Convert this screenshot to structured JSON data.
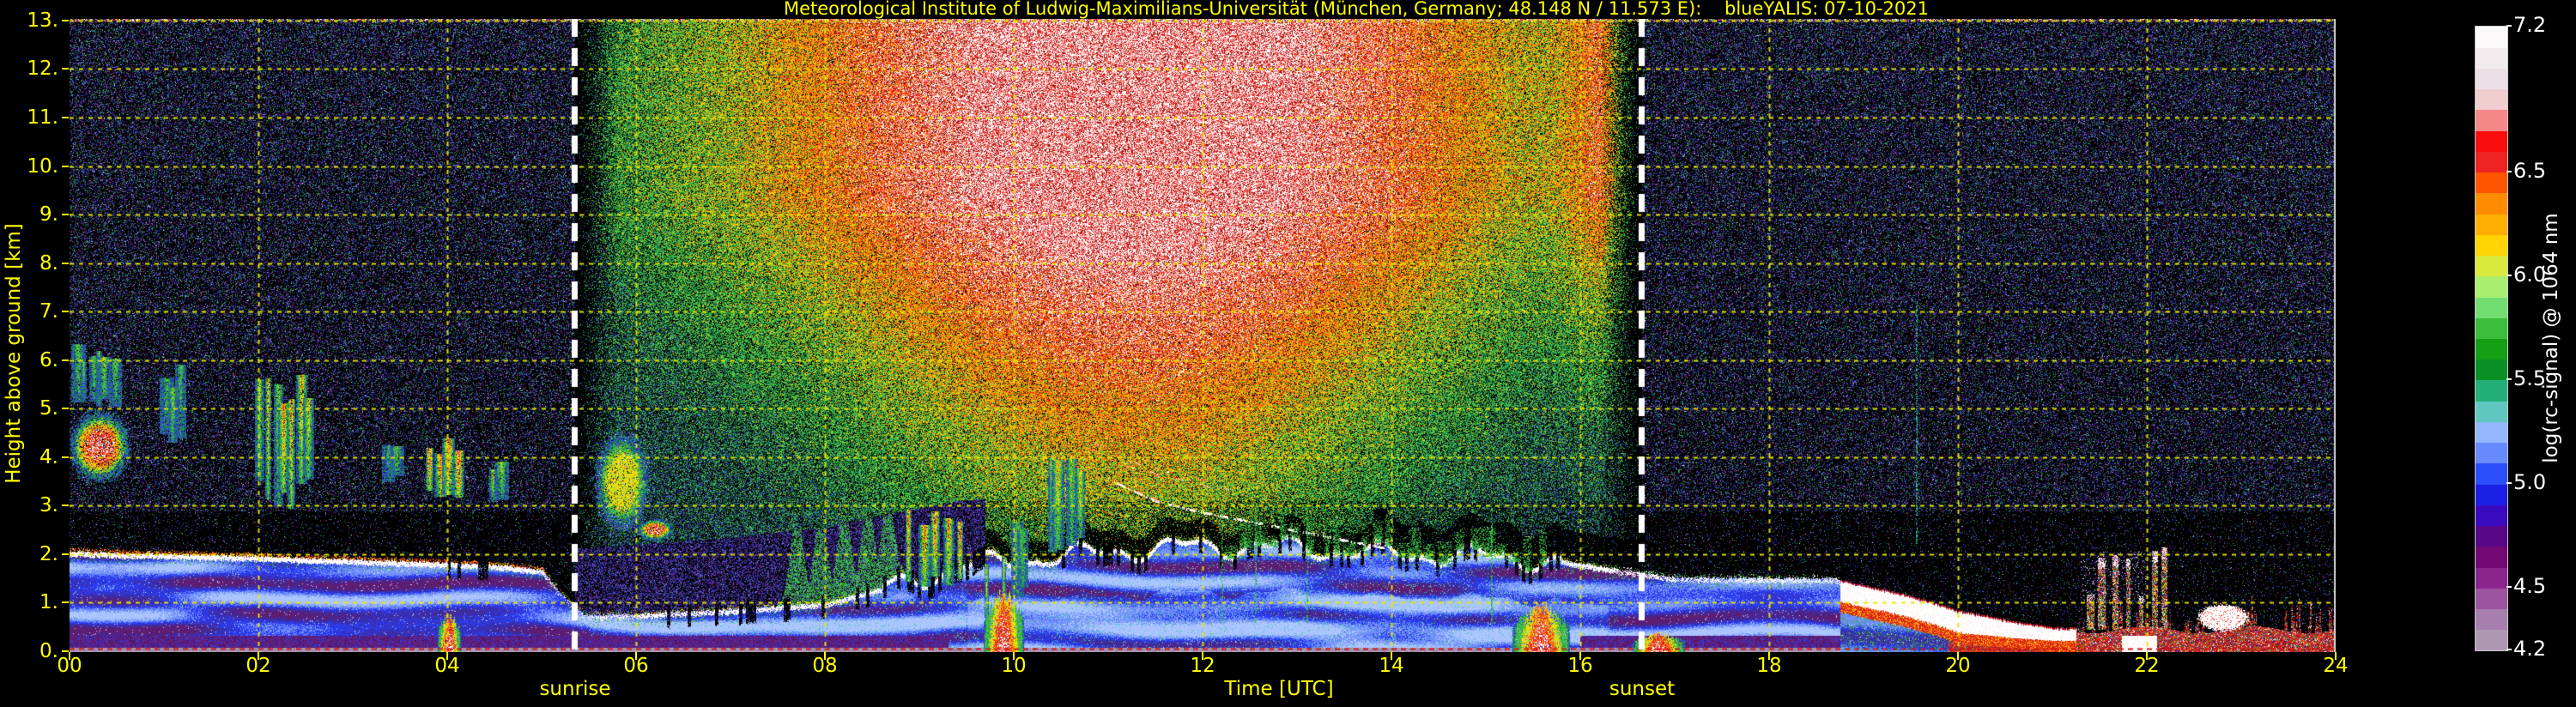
{
  "chart_data": {
    "type": "heatmap",
    "title": "Meteorological Institute of Ludwig-Maximilians-Universität (München, Germany; 48.148 N / 11.573 E):    blueYALIS: 07-10-2021",
    "xlabel": "Time [UTC]",
    "ylabel": "Height above ground [km]",
    "x_range_hours": [
      0,
      24
    ],
    "y_range_km": [
      0,
      13.05
    ],
    "x_ticks": [
      "00",
      "02",
      "04",
      "06",
      "08",
      "10",
      "12",
      "14",
      "16",
      "18",
      "20",
      "22",
      "24"
    ],
    "y_ticks": [
      "0.",
      "1.",
      "2.",
      "3.",
      "4.",
      "5.",
      "6.",
      "7.",
      "8.",
      "9.",
      "10.",
      "11.",
      "12.",
      "13."
    ],
    "grid": {
      "color": "#e8e800",
      "x_step_hours": 2,
      "y_step_km": 1,
      "style": "dashed"
    },
    "sun": {
      "sunrise_label": "sunrise",
      "sunrise_hour": 5.35,
      "sunset_label": "sunset",
      "sunset_hour": 16.65,
      "line_color": "#ffffff",
      "line_style": "dashed"
    },
    "colorbar": {
      "label": "log(rc-signal) @ 1064 nm",
      "range": [
        4.2,
        7.2
      ],
      "ticks": [
        "7.2",
        "6.5",
        "6.0",
        "5.5",
        "5.0",
        "4.5",
        "4.2"
      ],
      "segments": 30,
      "stops": [
        [
          4.2,
          "#b2a4b6"
        ],
        [
          4.35,
          "#a77fae"
        ],
        [
          4.5,
          "#963f9b"
        ],
        [
          4.6,
          "#7e0b80"
        ],
        [
          4.7,
          "#650567"
        ],
        [
          4.8,
          "#4a08a8"
        ],
        [
          4.9,
          "#2b0bd4"
        ],
        [
          5.0,
          "#0a30f2"
        ],
        [
          5.1,
          "#4a6bff"
        ],
        [
          5.2,
          "#86a8ff"
        ],
        [
          5.3,
          "#9fc3f8"
        ],
        [
          5.38,
          "#38c99c"
        ],
        [
          5.5,
          "#159a5e"
        ],
        [
          5.58,
          "#048a04"
        ],
        [
          5.7,
          "#1fae1f"
        ],
        [
          5.8,
          "#55cc55"
        ],
        [
          5.9,
          "#90f090"
        ],
        [
          6.0,
          "#c2ee4e"
        ],
        [
          6.08,
          "#e6e832"
        ],
        [
          6.15,
          "#ffd400"
        ],
        [
          6.25,
          "#ffae00"
        ],
        [
          6.35,
          "#ff8c00"
        ],
        [
          6.45,
          "#ff5400"
        ],
        [
          6.55,
          "#ee2222"
        ],
        [
          6.65,
          "#fc0d0d"
        ],
        [
          6.8,
          "#f2c6c6"
        ],
        [
          6.95,
          "#ebdfe5"
        ],
        [
          7.2,
          "#ffffff"
        ]
      ]
    },
    "boundary_layer_top_km": [
      [
        0,
        2.05
      ],
      [
        1,
        2.0
      ],
      [
        2,
        1.95
      ],
      [
        3,
        1.88
      ],
      [
        4,
        1.82
      ],
      [
        4.6,
        1.76
      ],
      [
        5.0,
        1.68
      ],
      [
        5.2,
        1.2
      ],
      [
        5.45,
        0.75
      ],
      [
        6,
        0.76
      ],
      [
        7,
        0.86
      ],
      [
        8,
        1.0
      ],
      [
        8.5,
        1.25
      ],
      [
        9,
        1.55
      ],
      [
        9.5,
        1.8
      ],
      [
        10,
        1.9
      ],
      [
        10.5,
        2.0
      ],
      [
        11,
        2.1
      ],
      [
        12,
        2.22
      ],
      [
        13,
        2.18
      ],
      [
        14,
        2.05
      ],
      [
        15,
        2.0
      ],
      [
        15.7,
        1.9
      ],
      [
        16.3,
        1.72
      ],
      [
        17,
        1.52
      ],
      [
        18.7,
        1.5
      ],
      [
        19.5,
        1.15
      ],
      [
        20,
        0.85
      ],
      [
        20.6,
        0.62
      ],
      [
        21,
        0.5
      ],
      [
        21.5,
        0.48
      ],
      [
        22,
        0.42
      ],
      [
        23,
        0.36
      ],
      [
        24,
        0.4
      ]
    ],
    "residual_haze_top_km": [
      [
        5.2,
        2.1
      ],
      [
        6,
        2.2
      ],
      [
        7,
        2.35
      ],
      [
        8,
        2.55
      ],
      [
        8.6,
        2.8
      ],
      [
        9.4,
        3.1
      ],
      [
        9.7,
        3.15
      ]
    ],
    "noise": {
      "day_peak_hour": 11.3,
      "night_density": 0.26,
      "day_density": 0.85
    },
    "evening_stratus": {
      "t": [
        18.75,
        21.25
      ]
    },
    "red_ground_layer": {
      "t": [
        21.25,
        24
      ],
      "h_base_km": 0.45
    },
    "red_dashed_line_km": 0.06,
    "top_edge_dots": true,
    "features": [
      {
        "type": "cloud_blob",
        "t": [
          0.02,
          0.62
        ],
        "h": [
          3.55,
          4.9
        ],
        "intensity": 1.0,
        "palette": "hot"
      },
      {
        "type": "cloud_streaks",
        "t": [
          0.05,
          0.5
        ],
        "h": [
          5.0,
          6.35
        ],
        "count": 6,
        "intensity": 0.55
      },
      {
        "type": "cloud_streaks",
        "t": [
          1.0,
          1.22
        ],
        "h": [
          4.2,
          5.9
        ],
        "count": 3,
        "intensity": 0.5
      },
      {
        "type": "cloud_streaks",
        "t": [
          1.98,
          2.58
        ],
        "h": [
          2.8,
          5.9
        ],
        "count": 7,
        "intensity": 0.8
      },
      {
        "type": "cloud_streaks",
        "t": [
          3.32,
          3.52
        ],
        "h": [
          3.4,
          4.35
        ],
        "count": 2,
        "intensity": 0.5
      },
      {
        "type": "cloud_streaks",
        "t": [
          3.78,
          4.18
        ],
        "h": [
          3.1,
          4.45
        ],
        "count": 4,
        "intensity": 0.95
      },
      {
        "type": "cloud_streaks",
        "t": [
          4.42,
          4.62
        ],
        "h": [
          2.9,
          4.1
        ],
        "count": 2,
        "intensity": 0.55
      },
      {
        "type": "ground_plume",
        "t": [
          3.9,
          4.14
        ],
        "h_top": 0.78,
        "intensity": 1.0,
        "palette": "hot"
      },
      {
        "type": "cloud_blob",
        "t": [
          5.58,
          6.12
        ],
        "h": [
          2.55,
          4.45
        ],
        "intensity": 0.75,
        "palette": "green"
      },
      {
        "type": "cloud_blob",
        "t": [
          6.02,
          6.38
        ],
        "h": [
          2.3,
          2.72
        ],
        "intensity": 0.9,
        "palette": "hot"
      },
      {
        "type": "cloud_streaks",
        "t": [
          8.82,
          9.52
        ],
        "h": [
          1.2,
          3.15
        ],
        "count": 5,
        "intensity": 0.9
      },
      {
        "type": "cloud_streaks",
        "t": [
          9.68,
          9.96
        ],
        "h": [
          0.5,
          2.1
        ],
        "count": 2,
        "intensity": 0.7,
        "thin": true
      },
      {
        "type": "ground_plume",
        "t": [
          9.68,
          10.1
        ],
        "h_top": 1.25,
        "intensity": 1.0,
        "palette": "hot"
      },
      {
        "type": "cloud_streaks",
        "t": [
          9.98,
          10.16
        ],
        "h": [
          0.8,
          3.0
        ],
        "count": 2,
        "intensity": 0.45,
        "green": true
      },
      {
        "type": "cloud_streaks",
        "t": [
          10.34,
          10.52
        ],
        "h": [
          1.8,
          4.6
        ],
        "count": 2,
        "intensity": 1.0
      },
      {
        "type": "cloud_streaks",
        "t": [
          10.56,
          10.72
        ],
        "h": [
          2.0,
          4.0
        ],
        "count": 2,
        "intensity": 0.6
      },
      {
        "type": "fallstreak_line",
        "points": [
          [
            11.0,
            3.55
          ],
          [
            11.5,
            3.1
          ],
          [
            12.0,
            2.86
          ],
          [
            12.7,
            2.6
          ],
          [
            13.4,
            2.33
          ],
          [
            13.95,
            2.12
          ]
        ]
      },
      {
        "type": "scatter_dashes",
        "t": [
          10.75,
          12.35
        ],
        "h": [
          3.15,
          4.35
        ],
        "count": 16
      },
      {
        "type": "green_plumes",
        "t": [
          12.3,
          15.6
        ],
        "h_rise": 1.0
      },
      {
        "type": "thin_green_columns",
        "hours": [
          12.2,
          12.55,
          13.1,
          15.05
        ],
        "h": [
          0.6,
          3.0
        ]
      },
      {
        "type": "ground_plume",
        "t": [
          15.28,
          15.88
        ],
        "h_top": 0.95,
        "intensity": 0.85,
        "palette": "orange"
      },
      {
        "type": "ground_plume",
        "t": [
          16.55,
          17.1
        ],
        "h_top": 0.38,
        "intensity": 0.9,
        "palette": "orange"
      },
      {
        "type": "rainbow_spikes",
        "t": [
          21.3,
          22.25
        ],
        "h_max": 2.05
      },
      {
        "type": "white_blob",
        "t": [
          22.55,
          23.05
        ],
        "h": [
          0.45,
          0.95
        ]
      },
      {
        "type": "teal_column",
        "hour": 19.55,
        "h": [
          2.2,
          7.2
        ]
      }
    ]
  }
}
